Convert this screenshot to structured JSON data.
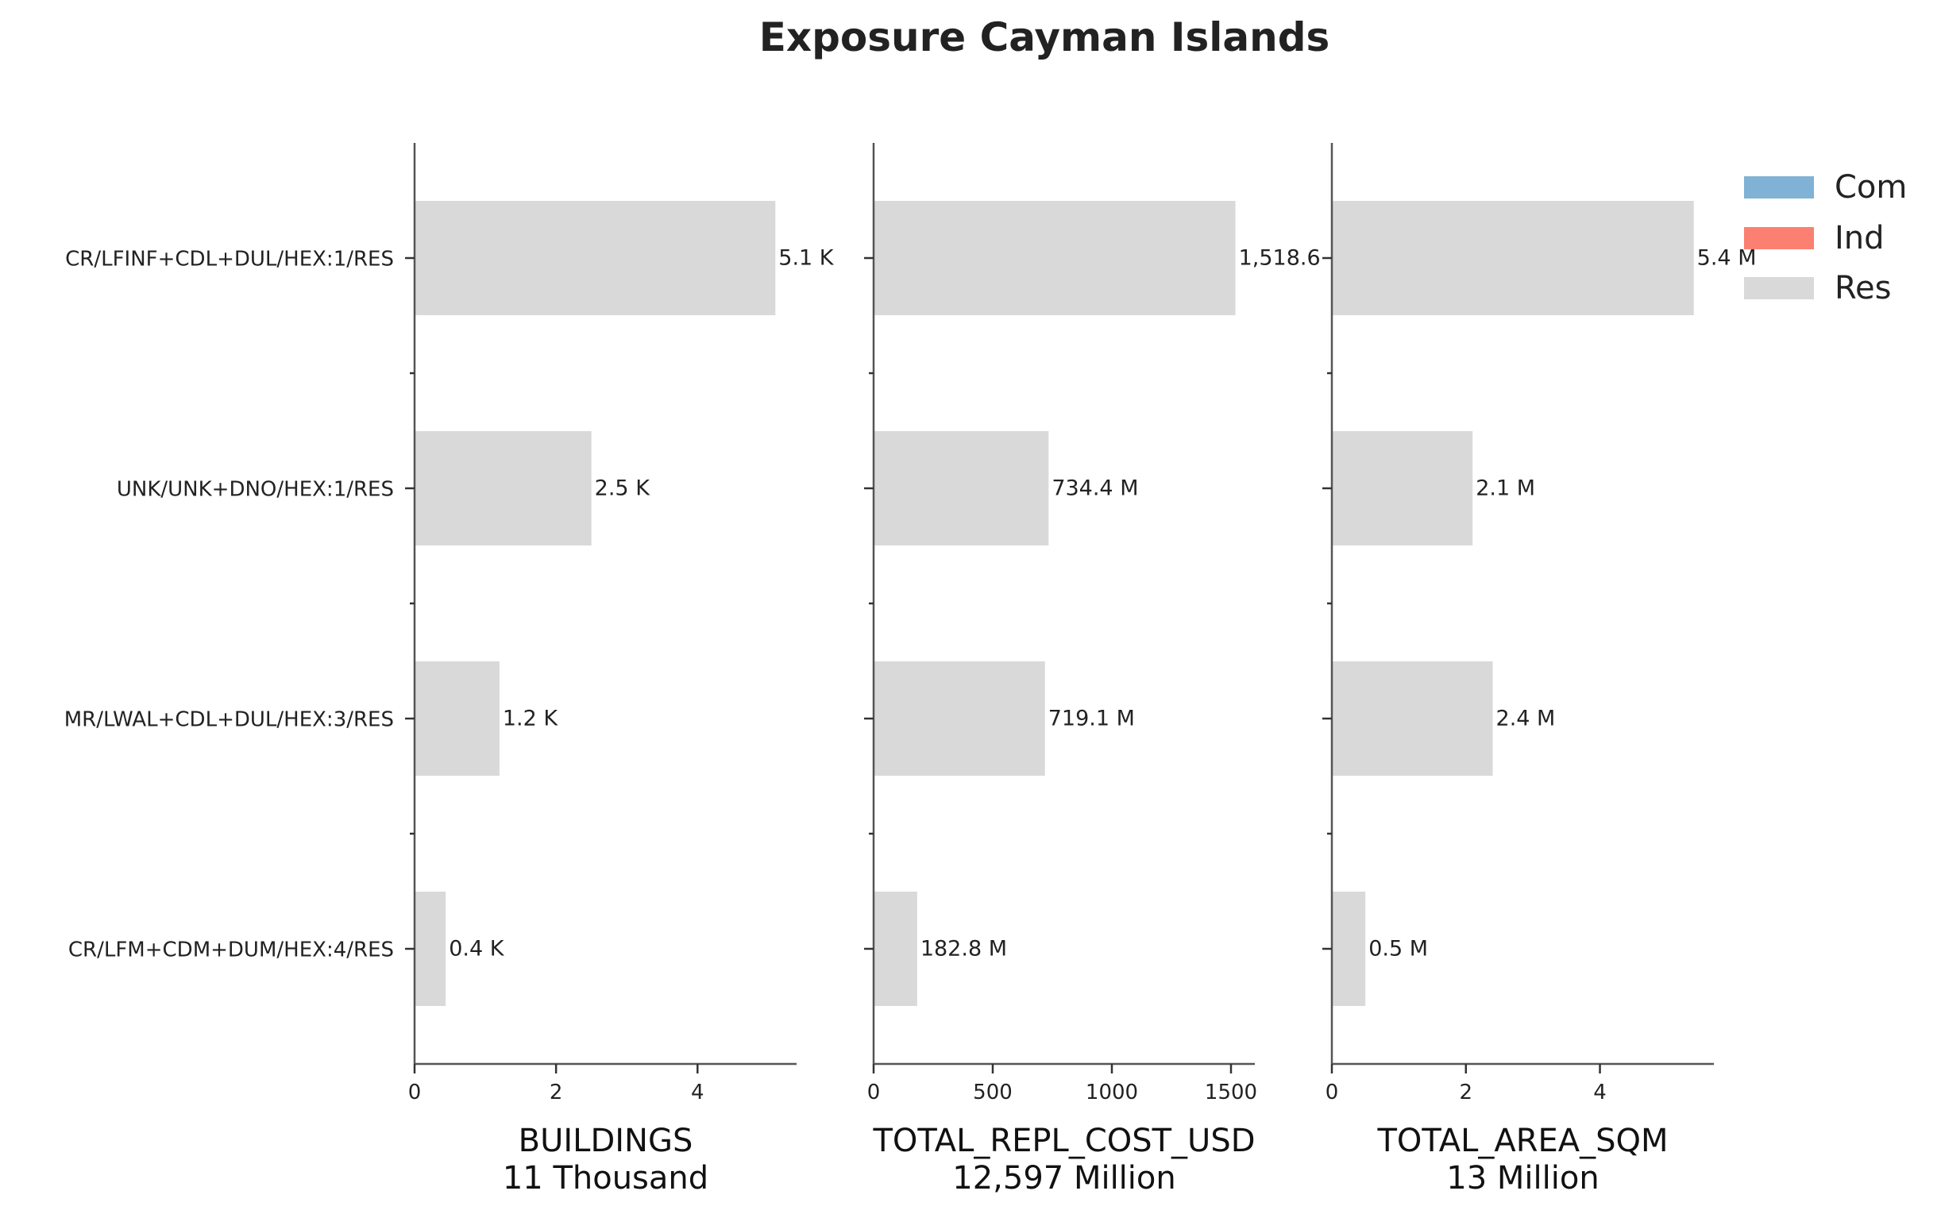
{
  "chart_data": {
    "type": "bar",
    "orientation": "horizontal",
    "title": "Exposure Cayman Islands",
    "categories": [
      "CR/LFINF+CDL+DUL/HEX:1/RES",
      "UNK/UNK+DNO/HEX:1/RES",
      "MR/LWAL+CDL+DUL/HEX:3/RES",
      "CR/LFM+CDM+DUM/HEX:4/RES"
    ],
    "legend": {
      "placement": "top-right",
      "entries": [
        {
          "name": "Com",
          "color": "#7fb2d5"
        },
        {
          "name": "Ind",
          "color": "#fb8072"
        },
        {
          "name": "Res",
          "color": "#d9d9d9"
        }
      ]
    },
    "panels": [
      {
        "xlabel": "BUILDINGS",
        "xsublabel": "11 Thousand",
        "xlim": [
          0,
          5.4
        ],
        "xticks": [
          0,
          2,
          4
        ],
        "xtick_labels": [
          "0",
          "2",
          "4"
        ],
        "series": "Res",
        "values": [
          5.1,
          2.5,
          1.2,
          0.44
        ],
        "value_labels": [
          "5.1 K",
          "2.5 K",
          "1.2 K",
          "0.4 K"
        ]
      },
      {
        "xlabel": "TOTAL_REPL_COST_USD",
        "xsublabel": "12,597 Million",
        "xlim": [
          0,
          1600
        ],
        "xticks": [
          0,
          500,
          1000,
          1500
        ],
        "xtick_labels": [
          "0",
          "500",
          "1000",
          "1500"
        ],
        "series": "Res",
        "values": [
          1518.6,
          734.4,
          719.1,
          182.8
        ],
        "value_labels": [
          "1,518.6",
          "734.4 M",
          "719.1 M",
          "182.8 M"
        ]
      },
      {
        "xlabel": "TOTAL_AREA_SQM",
        "xsublabel": "13 Million",
        "xlim": [
          0,
          5.7
        ],
        "xticks": [
          0,
          2,
          4
        ],
        "xtick_labels": [
          "0",
          "2",
          "4"
        ],
        "series": "Res",
        "values": [
          5.4,
          2.1,
          2.4,
          0.5
        ],
        "value_labels": [
          "5.4 M",
          "2.1 M",
          "2.4 M",
          "0.5 M"
        ]
      }
    ]
  }
}
